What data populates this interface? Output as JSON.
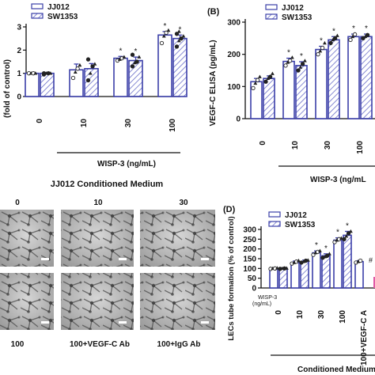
{
  "colors": {
    "jj012": "#3b3fa8",
    "sw1353": "#3b3fa8",
    "axis": "#111111",
    "dot": "#222222",
    "pink": "#e05aa6"
  },
  "panels": {
    "b_label": "(B)",
    "d_label": "(D)"
  },
  "panel_a": {
    "legend": [
      "JJ012",
      "SW1353"
    ],
    "y_label": "(fold of control)",
    "y_ticks": [
      "0",
      "1",
      "2",
      "3"
    ],
    "x_ticks": [
      "0",
      "10",
      "30",
      "100"
    ],
    "x_group": "WISP-3 (ng/mL)",
    "stars": [
      "*",
      "*",
      "*",
      "*"
    ]
  },
  "panel_b": {
    "legend": [
      "JJ012",
      "SW1353"
    ],
    "y_label": "VEGF-C ELISA (pg/mL)",
    "y_ticks": [
      "0",
      "100",
      "200",
      "300"
    ],
    "x_ticks": [
      "0",
      "10",
      "30",
      "100"
    ],
    "x_group": "WISP-3 (ng/mL",
    "stars": [
      "*",
      "*",
      "*",
      "*",
      "*",
      "*"
    ]
  },
  "panel_c": {
    "title": "JJ012 Conditioned Medium",
    "top_labels": [
      "0",
      "10",
      "30"
    ],
    "bottom_labels": [
      "100",
      "100+VEGF-C Ab",
      "100+IgG Ab"
    ]
  },
  "panel_d": {
    "legend": [
      "JJ012",
      "SW1353"
    ],
    "y_label": "LECs tube formation (% of control)",
    "y_ticks": [
      "0",
      "50",
      "100",
      "150",
      "200",
      "250",
      "300"
    ],
    "wisp_label": "WISP-3",
    "wisp_unit": "(ng/mL)",
    "x_ticks": [
      "0",
      "10",
      "30",
      "100",
      "100+VEGF-C A"
    ],
    "x_group": "Conditioned Medium",
    "stars": [
      "*",
      "*",
      "*",
      "*"
    ],
    "hash": "#"
  },
  "chart_data": [
    {
      "type": "bar",
      "panel": "A",
      "categories": [
        "0",
        "10",
        "30",
        "100"
      ],
      "series": [
        {
          "name": "JJ012",
          "values": [
            1.0,
            1.15,
            1.65,
            2.65
          ],
          "errors": [
            0.02,
            0.25,
            0.08,
            0.15
          ]
        },
        {
          "name": "SW1353",
          "values": [
            1.0,
            1.2,
            1.55,
            2.5
          ],
          "errors": [
            0.02,
            0.22,
            0.15,
            0.15
          ]
        }
      ],
      "points": [
        [
          [
            1,
            1,
            1,
            1
          ],
          [
            0.95,
            1.0,
            1.0,
            1.0,
            1.0
          ]
        ],
        [
          [
            0.8,
            1.05,
            1.2,
            1.35
          ],
          [
            0.7,
            1.0,
            1.3,
            1.4,
            1.6
          ]
        ],
        [
          [
            1.55,
            1.6,
            1.65,
            1.7
          ],
          [
            1.3,
            1.45,
            1.5,
            1.7,
            1.8
          ]
        ],
        [
          [
            2.3,
            2.6,
            2.75,
            2.85
          ],
          [
            2.15,
            2.4,
            2.5,
            2.6,
            2.7,
            2.8
          ]
        ]
      ],
      "xlabel": "WISP-3 (ng/mL)",
      "ylabel": "(fold of control)",
      "ylim": [
        0,
        3
      ]
    },
    {
      "type": "bar",
      "panel": "B",
      "categories": [
        "0",
        "10",
        "30",
        "100"
      ],
      "series": [
        {
          "name": "JJ012",
          "values": [
            115,
            178,
            215,
            255
          ],
          "errors": [
            10,
            10,
            10,
            8
          ]
        },
        {
          "name": "SW1353",
          "values": [
            125,
            165,
            245,
            255
          ],
          "errors": [
            8,
            12,
            10,
            8
          ]
        }
      ],
      "points": [
        [
          [
            95,
            110,
            120,
            130
          ],
          [
            115,
            125,
            130,
            140
          ]
        ],
        [
          [
            165,
            175,
            180,
            190
          ],
          [
            150,
            160,
            170,
            180
          ]
        ],
        [
          [
            200,
            210,
            220,
            235
          ],
          [
            235,
            245,
            250,
            258
          ]
        ],
        [
          [
            245,
            255,
            262
          ],
          [
            250,
            255,
            260
          ]
        ]
      ],
      "xlabel": "WISP-3 (ng/mL",
      "ylabel": "VEGF-C ELISA (pg/mL)",
      "ylim": [
        0,
        300
      ]
    },
    {
      "type": "bar",
      "panel": "D",
      "categories": [
        "0",
        "10",
        "30",
        "100",
        "100+VEGF-C A"
      ],
      "series": [
        {
          "name": "JJ012",
          "values": [
            100,
            130,
            180,
            245,
            135
          ],
          "errors": [
            2,
            8,
            10,
            12,
            5
          ]
        },
        {
          "name": "SW1353",
          "values": [
            100,
            135,
            165,
            270,
            0
          ],
          "errors": [
            2,
            8,
            10,
            20,
            0
          ]
        }
      ],
      "points": [
        [
          [
            98,
            100,
            100,
            102
          ],
          [
            98,
            100,
            100,
            101
          ]
        ],
        [
          [
            125,
            130,
            135,
            140
          ],
          [
            130,
            135,
            140,
            142
          ]
        ],
        [
          [
            170,
            180,
            185,
            190
          ],
          [
            155,
            160,
            165,
            175
          ]
        ],
        [
          [
            235,
            245,
            250,
            255
          ],
          [
            250,
            265,
            280,
            290
          ]
        ],
        [
          [
            130,
            135,
            140
          ],
          []
        ]
      ],
      "xlabel": "Conditioned Medium",
      "ylabel": "LECs tube formation (% of control)",
      "ylim": [
        0,
        300
      ]
    }
  ]
}
